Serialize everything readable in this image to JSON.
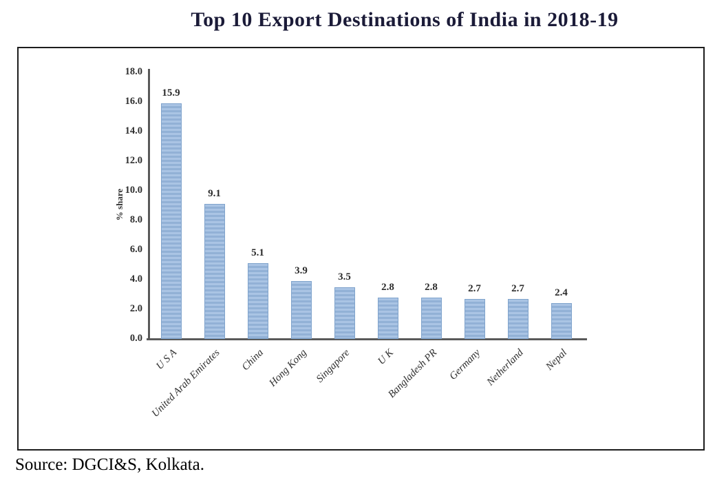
{
  "page": {
    "title": "Top 10 Export Destinations of India in 2018-19",
    "source_note": "Source: DGCI&S, Kolkata."
  },
  "chart_data": {
    "type": "bar",
    "title": "Top 10 Export Destinations of India in 2018-19",
    "categories": [
      "U S A",
      "United Arab Emirates",
      "China",
      "Hong Kong",
      "Singapore",
      "U K",
      "Bangladesh PR",
      "Germany",
      "Netherland",
      "Nepal"
    ],
    "values": [
      15.9,
      9.1,
      5.1,
      3.9,
      3.5,
      2.8,
      2.8,
      2.7,
      2.7,
      2.4
    ],
    "value_labels": [
      "15.9",
      "9.1",
      "5.1",
      "3.9",
      "3.5",
      "2.8",
      "2.8",
      "2.7",
      "2.7",
      "2.4"
    ],
    "xlabel": "",
    "ylabel": "% share",
    "ylim": [
      0,
      18
    ],
    "ytick_step": 2,
    "ytick_labels": [
      "0.0",
      "2.0",
      "4.0",
      "6.0",
      "8.0",
      "10.0",
      "12.0",
      "14.0",
      "16.0",
      "18.0"
    ],
    "grid": false,
    "legend": null,
    "colors": {
      "bar_fill": "#9db9dc",
      "bar_stripe": "#aac4e4",
      "bar_border": "#7fa3cc",
      "axis": "#595959",
      "title_text": "#1b1b38",
      "label_text": "#2e2e2e"
    }
  }
}
